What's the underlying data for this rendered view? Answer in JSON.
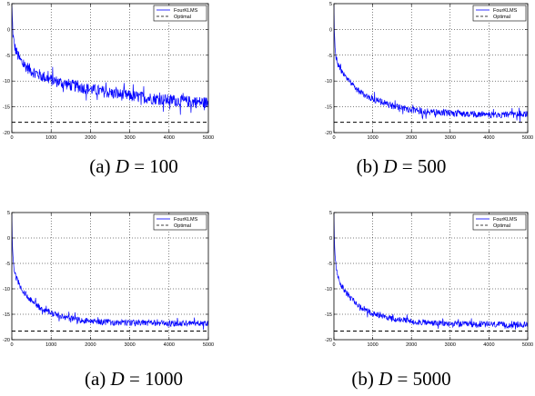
{
  "chart_data": [
    {
      "type": "line",
      "caption": {
        "prefix": "(a) ",
        "variable": "D",
        "equals": " = ",
        "value": "100"
      },
      "xlim": [
        0,
        5000
      ],
      "ylim": [
        -20,
        5
      ],
      "xticks": [
        0,
        1000,
        2000,
        3000,
        4000,
        5000
      ],
      "yticks": [
        5,
        0,
        -5,
        -10,
        -15,
        -20
      ],
      "grid": true,
      "legend": "top-right",
      "series": [
        {
          "name": "FourKLMS",
          "color": "#0000ff",
          "style": "solid",
          "x": [
            0,
            10,
            30,
            60,
            100,
            150,
            200,
            300,
            400,
            500,
            700,
            1000,
            1500,
            2000,
            2500,
            3000,
            3500,
            4000,
            4500,
            5000
          ],
          "values": [
            5,
            2.5,
            -1,
            -3,
            -4,
            -5,
            -5.8,
            -6.8,
            -7.4,
            -8,
            -8.8,
            -9.8,
            -10.8,
            -11.6,
            -12.3,
            -12.9,
            -13.3,
            -13.7,
            -14,
            -14.2
          ],
          "noise": 2.3
        },
        {
          "name": "Optimal",
          "color": "#000000",
          "style": "dashed",
          "x": [
            0,
            5000
          ],
          "values": [
            -18,
            -18
          ]
        }
      ]
    },
    {
      "type": "line",
      "caption": {
        "prefix": "(b) ",
        "variable": "D",
        "equals": " = ",
        "value": "500"
      },
      "xlim": [
        0,
        5000
      ],
      "ylim": [
        -20,
        5
      ],
      "xticks": [
        0,
        1000,
        2000,
        3000,
        4000,
        5000
      ],
      "yticks": [
        5,
        0,
        -5,
        -10,
        -15,
        -20
      ],
      "grid": true,
      "legend": "top-right",
      "series": [
        {
          "name": "FourKLMS",
          "color": "#0000ff",
          "style": "solid",
          "x": [
            0,
            10,
            30,
            60,
            100,
            150,
            200,
            300,
            400,
            500,
            700,
            1000,
            1500,
            2000,
            2500,
            3000,
            3500,
            4000,
            4500,
            5000
          ],
          "values": [
            5,
            0,
            -3.5,
            -5.5,
            -6.8,
            -7.6,
            -8.3,
            -9.3,
            -10.2,
            -11,
            -12.2,
            -13.5,
            -14.8,
            -15.6,
            -16,
            -16.2,
            -16.4,
            -16.5,
            -16.5,
            -16.5
          ],
          "noise": 1.3
        },
        {
          "name": "Optimal",
          "color": "#000000",
          "style": "dashed",
          "x": [
            0,
            5000
          ],
          "values": [
            -18,
            -18
          ]
        }
      ]
    },
    {
      "type": "line",
      "caption": {
        "prefix": "(a) ",
        "variable": "D",
        "equals": " = ",
        "value": "1000"
      },
      "xlim": [
        0,
        5000
      ],
      "ylim": [
        -20,
        5
      ],
      "xticks": [
        0,
        1000,
        2000,
        3000,
        4000,
        5000
      ],
      "yticks": [
        5,
        0,
        -5,
        -10,
        -15,
        -20
      ],
      "grid": true,
      "legend": "top-right",
      "series": [
        {
          "name": "FourKLMS",
          "color": "#0000ff",
          "style": "solid",
          "x": [
            0,
            10,
            30,
            60,
            100,
            150,
            200,
            300,
            400,
            500,
            700,
            1000,
            1500,
            2000,
            2500,
            3000,
            3500,
            4000,
            4500,
            5000
          ],
          "values": [
            5,
            0,
            -4,
            -6,
            -7.5,
            -8.6,
            -9.4,
            -10.6,
            -11.5,
            -12.3,
            -13.6,
            -14.8,
            -15.9,
            -16.4,
            -16.6,
            -16.7,
            -16.7,
            -16.8,
            -16.8,
            -16.8
          ],
          "noise": 1.2
        },
        {
          "name": "Optimal",
          "color": "#000000",
          "style": "dashed",
          "x": [
            0,
            5000
          ],
          "values": [
            -18.3,
            -18.3
          ]
        }
      ]
    },
    {
      "type": "line",
      "caption": {
        "prefix": "(b) ",
        "variable": "D",
        "equals": " = ",
        "value": "5000"
      },
      "xlim": [
        0,
        5000
      ],
      "ylim": [
        -20,
        5
      ],
      "xticks": [
        0,
        1000,
        2000,
        3000,
        4000,
        5000
      ],
      "yticks": [
        5,
        0,
        -5,
        -10,
        -15,
        -20
      ],
      "grid": true,
      "legend": "top-right",
      "series": [
        {
          "name": "FourKLMS",
          "color": "#0000ff",
          "style": "solid",
          "x": [
            0,
            10,
            30,
            60,
            100,
            150,
            200,
            300,
            400,
            500,
            700,
            1000,
            1500,
            2000,
            2500,
            3000,
            3500,
            4000,
            4500,
            5000
          ],
          "values": [
            5,
            0,
            -4,
            -6,
            -7.5,
            -8.6,
            -9.4,
            -10.6,
            -11.5,
            -12.3,
            -13.6,
            -14.8,
            -15.9,
            -16.4,
            -16.7,
            -16.9,
            -17,
            -17,
            -17.1,
            -17.1
          ],
          "noise": 1.2
        },
        {
          "name": "Optimal",
          "color": "#000000",
          "style": "dashed",
          "x": [
            0,
            5000
          ],
          "values": [
            -18.3,
            -18.3
          ]
        }
      ]
    }
  ]
}
